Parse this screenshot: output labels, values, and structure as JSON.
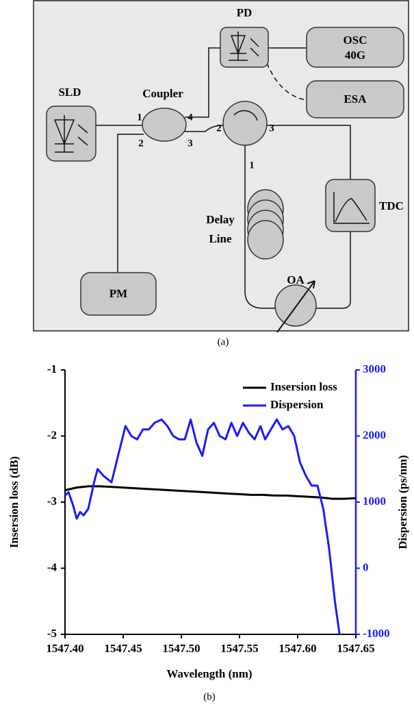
{
  "diagram": {
    "nodes": {
      "pd": "PD",
      "osc": [
        "OSC",
        "40G"
      ],
      "esa": "ESA",
      "sld": "SLD",
      "coupler": "Coupler",
      "tdc": "TDC",
      "delay_line": [
        "Delay",
        "Line"
      ],
      "pm": "PM",
      "oa": "OA"
    },
    "ports": {
      "coupler": [
        "1",
        "4",
        "2",
        "3"
      ],
      "circulator": [
        "2",
        "3",
        "1"
      ]
    },
    "caption": "(a)"
  },
  "chart_data": {
    "type": "line",
    "caption": "(b)",
    "x_label": "Wavelength (nm)",
    "y_label": "Insersion loss (dB)",
    "y2_label": "Dispersion (ps/nm)",
    "xlim": [
      1547.4,
      1547.65
    ],
    "xticks": [
      {
        "value": 1547.4,
        "label": "1547.40"
      },
      {
        "value": 1547.45,
        "label": "1547.45"
      },
      {
        "value": 1547.5,
        "label": "1547.50"
      },
      {
        "value": 1547.55,
        "label": "1547.55"
      },
      {
        "value": 1547.6,
        "label": "1547.60"
      },
      {
        "value": 1547.65,
        "label": "1547.65"
      }
    ],
    "ylim": [
      -5,
      -1
    ],
    "yticks": [
      -5,
      -4,
      -3,
      -2,
      -1
    ],
    "y2lim": [
      -1000,
      3000
    ],
    "y2ticks": [
      -1000,
      0,
      1000,
      2000,
      3000
    ],
    "legend": "upper right",
    "series": [
      {
        "name": "Insersion loss",
        "color": "#000000",
        "x": [
          1547.4,
          1547.41,
          1547.42,
          1547.43,
          1547.44,
          1547.45,
          1547.46,
          1547.47,
          1547.48,
          1547.49,
          1547.5,
          1547.51,
          1547.52,
          1547.53,
          1547.54,
          1547.55,
          1547.56,
          1547.57,
          1547.58,
          1547.59,
          1547.6,
          1547.61,
          1547.62,
          1547.63,
          1547.64,
          1547.65
        ],
        "values": [
          -2.82,
          -2.78,
          -2.76,
          -2.76,
          -2.77,
          -2.78,
          -2.79,
          -2.8,
          -2.81,
          -2.82,
          -2.83,
          -2.84,
          -2.85,
          -2.86,
          -2.87,
          -2.88,
          -2.89,
          -2.89,
          -2.9,
          -2.9,
          -2.91,
          -2.92,
          -2.93,
          -2.95,
          -2.95,
          -2.94
        ]
      },
      {
        "name": "Dispersion",
        "color": "#1a1aff",
        "axis": "y2",
        "x": [
          1547.4,
          1547.403,
          1547.407,
          1547.41,
          1547.413,
          1547.416,
          1547.42,
          1547.425,
          1547.428,
          1547.433,
          1547.44,
          1547.447,
          1547.452,
          1547.457,
          1547.462,
          1547.467,
          1547.472,
          1547.477,
          1547.483,
          1547.488,
          1547.493,
          1547.498,
          1547.503,
          1547.508,
          1547.513,
          1547.518,
          1547.523,
          1547.528,
          1547.533,
          1547.538,
          1547.543,
          1547.548,
          1547.553,
          1547.558,
          1547.563,
          1547.568,
          1547.572,
          1547.577,
          1547.582,
          1547.587,
          1547.592,
          1547.597,
          1547.602,
          1547.607,
          1547.612,
          1547.617,
          1547.622,
          1547.627,
          1547.632,
          1547.636
        ],
        "values": [
          1100,
          1150,
          950,
          750,
          850,
          800,
          900,
          1300,
          1500,
          1400,
          1300,
          1800,
          2150,
          2000,
          1950,
          2100,
          2100,
          2200,
          2250,
          2150,
          2000,
          1950,
          1950,
          2250,
          1900,
          1700,
          2100,
          2200,
          2000,
          1950,
          2200,
          2000,
          2200,
          2050,
          1950,
          2150,
          1950,
          2100,
          2250,
          2100,
          2150,
          2000,
          1600,
          1400,
          1250,
          1250,
          900,
          300,
          -500,
          -1000
        ]
      }
    ]
  }
}
